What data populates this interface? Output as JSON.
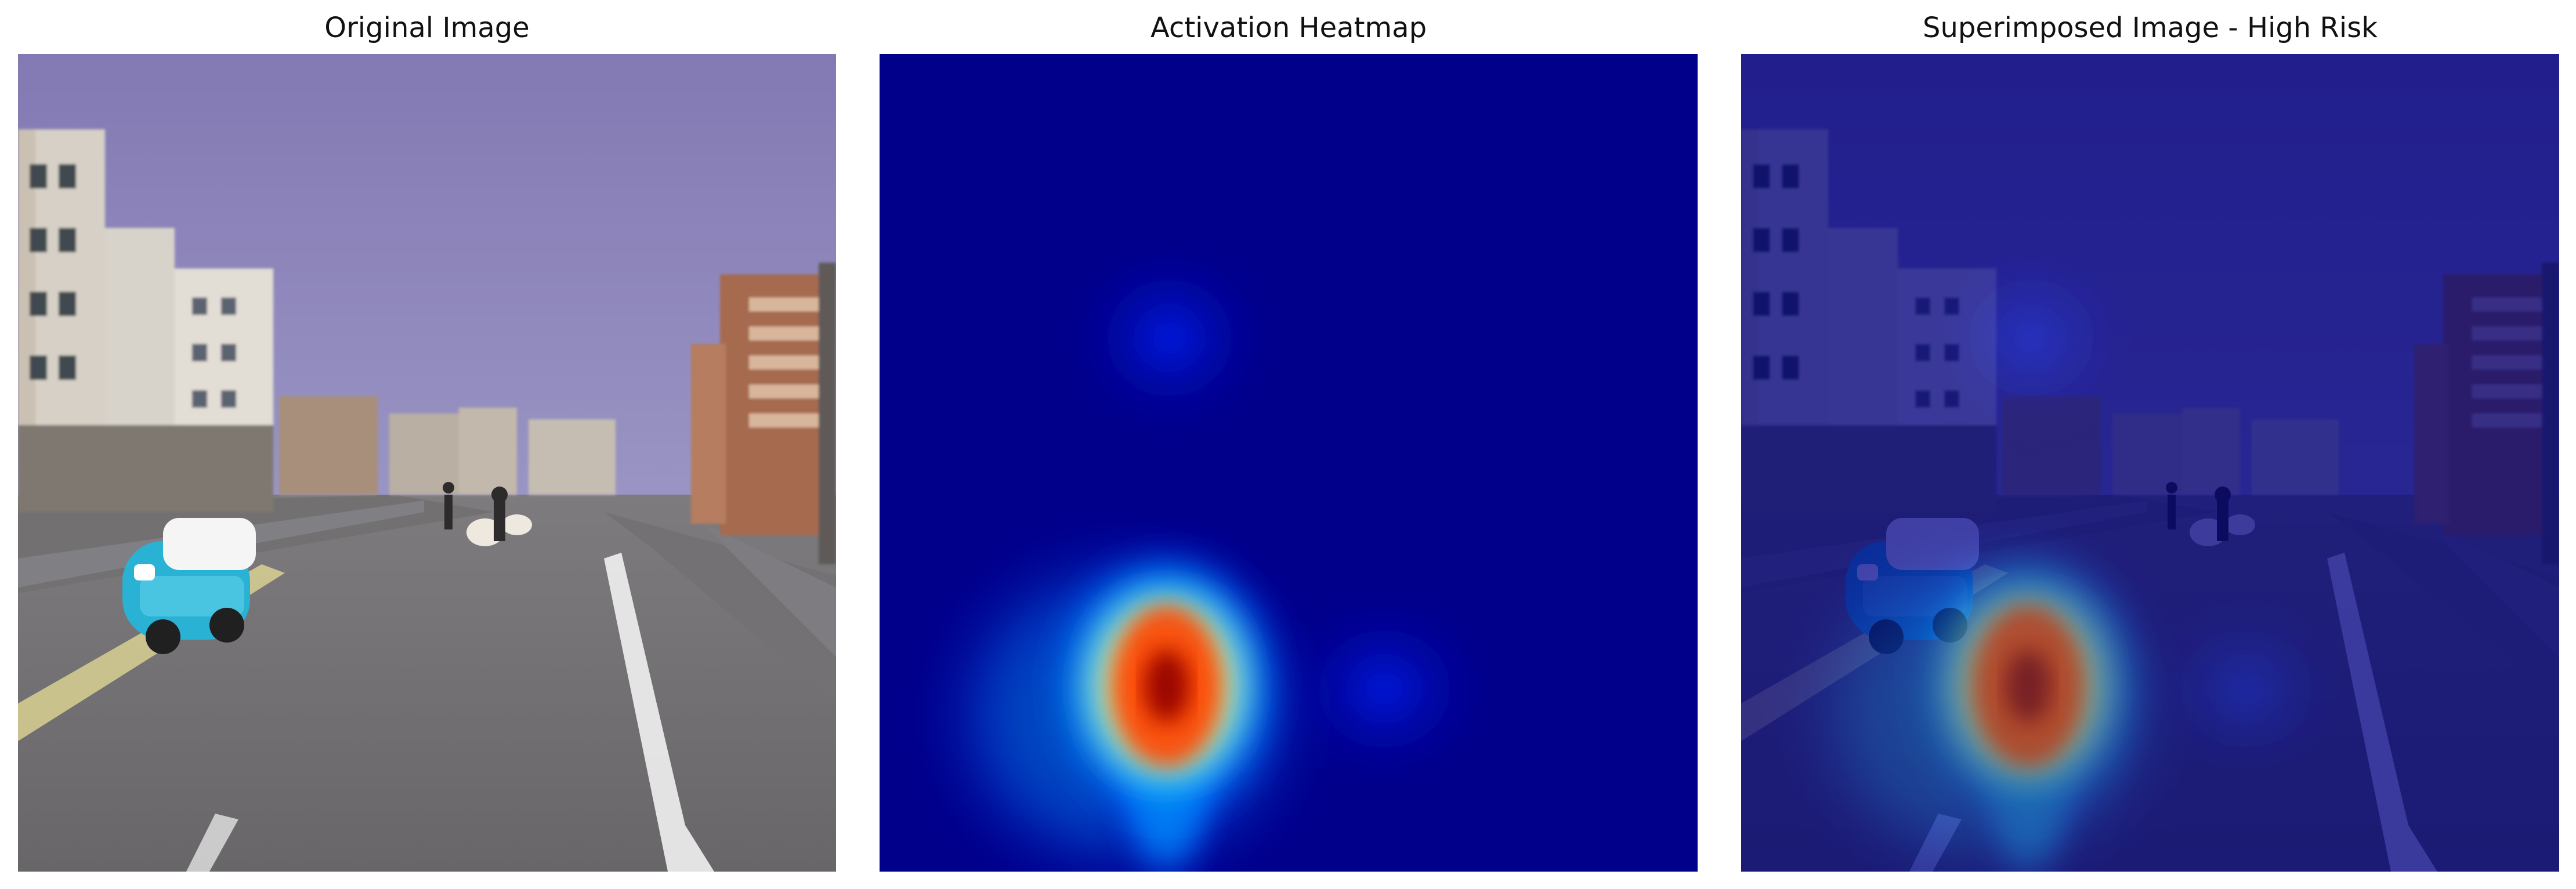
{
  "titles": {
    "original": "Original Image",
    "heatmap": "Activation Heatmap",
    "overlay": "Superimposed Image - High Risk"
  },
  "icons": {
    "scene": "street-scene-photo",
    "heatmap": "activation-heatmap",
    "overlay": "superimposed-heatmap-overlay"
  },
  "colors": {
    "sky_top": "#8379b3",
    "sky_bottom": "#d8dbef",
    "road": "#6f6d6f",
    "car_body": "#29b2d4",
    "car_roof": "#f5f5f5",
    "heat_low": "#00008b",
    "heat_high": "#ff0000",
    "lane_marking": "#f1f1f1"
  }
}
